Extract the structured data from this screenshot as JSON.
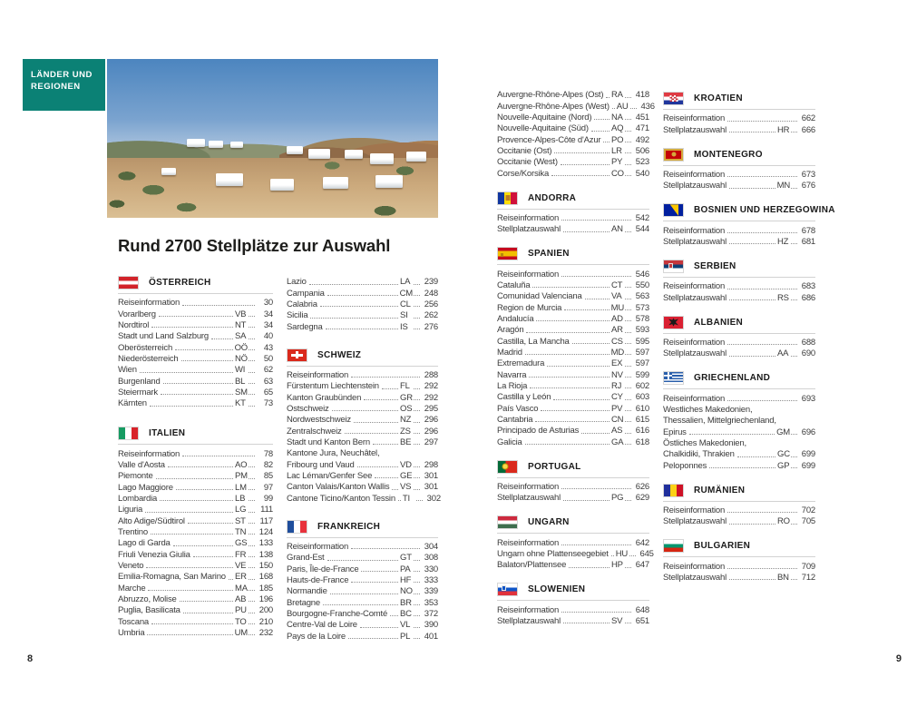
{
  "page": {
    "tab_line1": "LÄNDER UND",
    "tab_line2": "REGIONEN",
    "title": "Rund 2700 Stellplätze zur Auswahl",
    "page_left": "8",
    "page_right": "9",
    "accent_color": "#0b8175"
  },
  "columns": [
    {
      "sections": [
        {
          "country": "ÖSTERREICH",
          "flag": "austria",
          "entries": [
            {
              "label": "Reiseinformation",
              "page": "30"
            },
            {
              "label": "Vorarlberg",
              "code": "VB",
              "page": "34"
            },
            {
              "label": "Nordtirol",
              "code": "NT",
              "page": "34"
            },
            {
              "label": "Stadt und Land Salzburg",
              "code": "SA",
              "page": "40"
            },
            {
              "label": "Oberösterreich",
              "code": "OÖ",
              "page": "43"
            },
            {
              "label": "Niederösterreich",
              "code": "NÖ",
              "page": "50"
            },
            {
              "label": "Wien",
              "code": "WI",
              "page": "62"
            },
            {
              "label": "Burgenland",
              "code": "BL",
              "page": "63"
            },
            {
              "label": "Steiermark",
              "code": "SM",
              "page": "65"
            },
            {
              "label": "Kärnten",
              "code": "KT",
              "page": "73"
            }
          ]
        },
        {
          "country": "ITALIEN",
          "flag": "italy",
          "entries": [
            {
              "label": "Reiseinformation",
              "page": "78"
            },
            {
              "label": "Valle d'Aosta",
              "code": "AO",
              "page": "82"
            },
            {
              "label": "Piemonte",
              "code": "PM",
              "page": "85"
            },
            {
              "label": "Lago Maggiore",
              "code": "LM",
              "page": "97"
            },
            {
              "label": "Lombardia",
              "code": "LB",
              "page": "99"
            },
            {
              "label": "Liguria",
              "code": "LG",
              "page": "111"
            },
            {
              "label": "Alto Adige/Südtirol",
              "code": "ST",
              "page": "117"
            },
            {
              "label": "Trentino",
              "code": "TN",
              "page": "124"
            },
            {
              "label": "Lago di Garda",
              "code": "GS",
              "page": "133"
            },
            {
              "label": "Friuli Venezia Giulia",
              "code": "FR",
              "page": "138"
            },
            {
              "label": "Veneto",
              "code": "VE",
              "page": "150"
            },
            {
              "label": "Emilia-Romagna, San Marino",
              "code": "ER",
              "page": "168"
            },
            {
              "label": "Marche",
              "code": "MA",
              "page": "185"
            },
            {
              "label": "Abruzzo, Molise",
              "code": "AB",
              "page": "196"
            },
            {
              "label": "Puglia, Basilicata",
              "code": "PU",
              "page": "200"
            },
            {
              "label": "Toscana",
              "code": "TO",
              "page": "210"
            },
            {
              "label": "Umbria",
              "code": "UM",
              "page": "232"
            }
          ]
        }
      ]
    },
    {
      "sections": [
        {
          "country": null,
          "flag": null,
          "entries": [
            {
              "label": "Lazio",
              "code": "LA",
              "page": "239"
            },
            {
              "label": "Campania",
              "code": "CM",
              "page": "248"
            },
            {
              "label": "Calabria",
              "code": "CL",
              "page": "256"
            },
            {
              "label": "Sicilia",
              "code": "SI",
              "page": "262"
            },
            {
              "label": "Sardegna",
              "code": "IS",
              "page": "276"
            }
          ]
        },
        {
          "country": "SCHWEIZ",
          "flag": "switzerland",
          "entries": [
            {
              "label": "Reiseinformation",
              "page": "288"
            },
            {
              "label": "Fürstentum Liechtenstein",
              "code": "FL",
              "page": "292"
            },
            {
              "label": "Kanton Graubünden",
              "code": "GR",
              "page": "292"
            },
            {
              "label": "Ostschweiz",
              "code": "OS",
              "page": "295"
            },
            {
              "label": "Nordwestschweiz",
              "code": "NZ",
              "page": "296"
            },
            {
              "label": "Zentralschweiz",
              "code": "ZS",
              "page": "296"
            },
            {
              "label": "Stadt und Kanton Bern",
              "code": "BE",
              "page": "297"
            },
            {
              "label": "Kantone Jura, Neuchâtel,",
              "wrap": true
            },
            {
              "label": "Fribourg und Vaud",
              "code": "VD",
              "page": "298"
            },
            {
              "label": "Lac Léman/Genfer See",
              "code": "GE",
              "page": "301"
            },
            {
              "label": "Canton Valais/Kanton Wallis",
              "code": "VS",
              "page": "301"
            },
            {
              "label": "Cantone Ticino/Kanton Tessin",
              "code": "TI",
              "page": "302"
            }
          ]
        },
        {
          "country": "FRANKREICH",
          "flag": "france",
          "entries": [
            {
              "label": "Reiseinformation",
              "page": "304"
            },
            {
              "label": "Grand-Est",
              "code": "GT",
              "page": "308"
            },
            {
              "label": "Paris, Île-de-France",
              "code": "PA",
              "page": "330"
            },
            {
              "label": "Hauts-de-France",
              "code": "HF",
              "page": "333"
            },
            {
              "label": "Normandie",
              "code": "NO",
              "page": "339"
            },
            {
              "label": "Bretagne",
              "code": "BR",
              "page": "353"
            },
            {
              "label": "Bourgogne-Franche-Comté",
              "code": "BC",
              "page": "372"
            },
            {
              "label": "Centre-Val de Loire",
              "code": "VL",
              "page": "390"
            },
            {
              "label": "Pays de la Loire",
              "code": "PL",
              "page": "401"
            }
          ]
        }
      ]
    },
    {
      "sections": [
        {
          "country": null,
          "flag": null,
          "entries": [
            {
              "label": "Auvergne-Rhône-Alpes (Ost)",
              "code": "RA",
              "page": "418"
            },
            {
              "label": "Auvergne-Rhône-Alpes (West)",
              "code": "AU",
              "page": "436"
            },
            {
              "label": "Nouvelle-Aquitaine (Nord)",
              "code": "NA",
              "page": "451"
            },
            {
              "label": "Nouvelle-Aquitaine (Süd)",
              "code": "AQ",
              "page": "471"
            },
            {
              "label": "Provence-Alpes-Côte d'Azur",
              "code": "PO",
              "page": "492"
            },
            {
              "label": "Occitanie (Ost)",
              "code": "LR",
              "page": "506"
            },
            {
              "label": "Occitanie (West)",
              "code": "PY",
              "page": "523"
            },
            {
              "label": "Corse/Korsika",
              "code": "CO",
              "page": "540"
            }
          ]
        },
        {
          "country": "ANDORRA",
          "flag": "andorra",
          "entries": [
            {
              "label": "Reiseinformation",
              "page": "542"
            },
            {
              "label": "Stellplatzauswahl",
              "code": "AN",
              "page": "544"
            }
          ]
        },
        {
          "country": "SPANIEN",
          "flag": "spain",
          "entries": [
            {
              "label": "Reiseinformation",
              "page": "546"
            },
            {
              "label": "Cataluña",
              "code": "CT",
              "page": "550"
            },
            {
              "label": "Comunidad Valenciana",
              "code": "VA",
              "page": "563"
            },
            {
              "label": "Region de Murcia",
              "code": "MU",
              "page": "573"
            },
            {
              "label": "Andalucía",
              "code": "AD",
              "page": "578"
            },
            {
              "label": "Aragón",
              "code": "AR",
              "page": "593"
            },
            {
              "label": "Castilla, La Mancha",
              "code": "CS",
              "page": "595"
            },
            {
              "label": "Madrid",
              "code": "MD",
              "page": "597"
            },
            {
              "label": "Extremadura",
              "code": "EX",
              "page": "597"
            },
            {
              "label": "Navarra",
              "code": "NV",
              "page": "599"
            },
            {
              "label": "La Rioja",
              "code": "RJ",
              "page": "602"
            },
            {
              "label": "Castilla y León",
              "code": "CY",
              "page": "603"
            },
            {
              "label": "País Vasco",
              "code": "PV",
              "page": "610"
            },
            {
              "label": "Cantabria",
              "code": "CN",
              "page": "615"
            },
            {
              "label": "Principado de Asturias",
              "code": "AS",
              "page": "616"
            },
            {
              "label": "Galicia",
              "code": "GA",
              "page": "618"
            }
          ]
        },
        {
          "country": "PORTUGAL",
          "flag": "portugal",
          "entries": [
            {
              "label": "Reiseinformation",
              "page": "626"
            },
            {
              "label": "Stellplatzauswahl",
              "code": "PG",
              "page": "629"
            }
          ]
        },
        {
          "country": "UNGARN",
          "flag": "hungary",
          "entries": [
            {
              "label": "Reiseinformation",
              "page": "642"
            },
            {
              "label": "Ungarn ohne Plattenseegebiet",
              "code": "HU",
              "page": "645"
            },
            {
              "label": "Balaton/Plattensee",
              "code": "HP",
              "page": "647"
            }
          ]
        },
        {
          "country": "SLOWENIEN",
          "flag": "slovenia",
          "entries": [
            {
              "label": "Reiseinformation",
              "page": "648"
            },
            {
              "label": "Stellplatzauswahl",
              "code": "SV",
              "page": "651"
            }
          ]
        }
      ]
    },
    {
      "sections": [
        {
          "country": "KROATIEN",
          "flag": "croatia",
          "entries": [
            {
              "label": "Reiseinformation",
              "page": "662"
            },
            {
              "label": "Stellplatzauswahl",
              "code": "HR",
              "page": "666"
            }
          ]
        },
        {
          "country": "MONTENEGRO",
          "flag": "montenegro",
          "entries": [
            {
              "label": "Reiseinformation",
              "page": "673"
            },
            {
              "label": "Stellplatzauswahl",
              "code": "MN",
              "page": "676"
            }
          ]
        },
        {
          "country": "BOSNIEN UND HERZEGOWINA",
          "flag": "bosnia",
          "entries": [
            {
              "label": "Reiseinformation",
              "page": "678"
            },
            {
              "label": "Stellplatzauswahl",
              "code": "HZ",
              "page": "681"
            }
          ]
        },
        {
          "country": "SERBIEN",
          "flag": "serbia",
          "entries": [
            {
              "label": "Reiseinformation",
              "page": "683"
            },
            {
              "label": "Stellplatzauswahl",
              "code": "RS",
              "page": "686"
            }
          ]
        },
        {
          "country": "ALBANIEN",
          "flag": "albania",
          "entries": [
            {
              "label": "Reiseinformation",
              "page": "688"
            },
            {
              "label": "Stellplatzauswahl",
              "code": "AA",
              "page": "690"
            }
          ]
        },
        {
          "country": "GRIECHENLAND",
          "flag": "greece",
          "entries": [
            {
              "label": "Reiseinformation",
              "page": "693"
            },
            {
              "label": "Westliches Makedonien,",
              "wrap": true
            },
            {
              "label": "Thessalien, Mittelgriechenland,",
              "wrap": true
            },
            {
              "label": "Epirus",
              "code": "GM",
              "page": "696"
            },
            {
              "label": "Östliches Makedonien,",
              "wrap": true
            },
            {
              "label": "Chalkidiki, Thrakien",
              "code": "GC",
              "page": "699"
            },
            {
              "label": "Peloponnes",
              "code": "GP",
              "page": "699"
            }
          ]
        },
        {
          "country": "RUMÄNIEN",
          "flag": "romania",
          "entries": [
            {
              "label": "Reiseinformation",
              "page": "702"
            },
            {
              "label": "Stellplatzauswahl",
              "code": "RO",
              "page": "705"
            }
          ]
        },
        {
          "country": "BULGARIEN",
          "flag": "bulgaria",
          "entries": [
            {
              "label": "Reiseinformation",
              "page": "709"
            },
            {
              "label": "Stellplatzauswahl",
              "code": "BN",
              "page": "712"
            }
          ]
        }
      ]
    }
  ]
}
